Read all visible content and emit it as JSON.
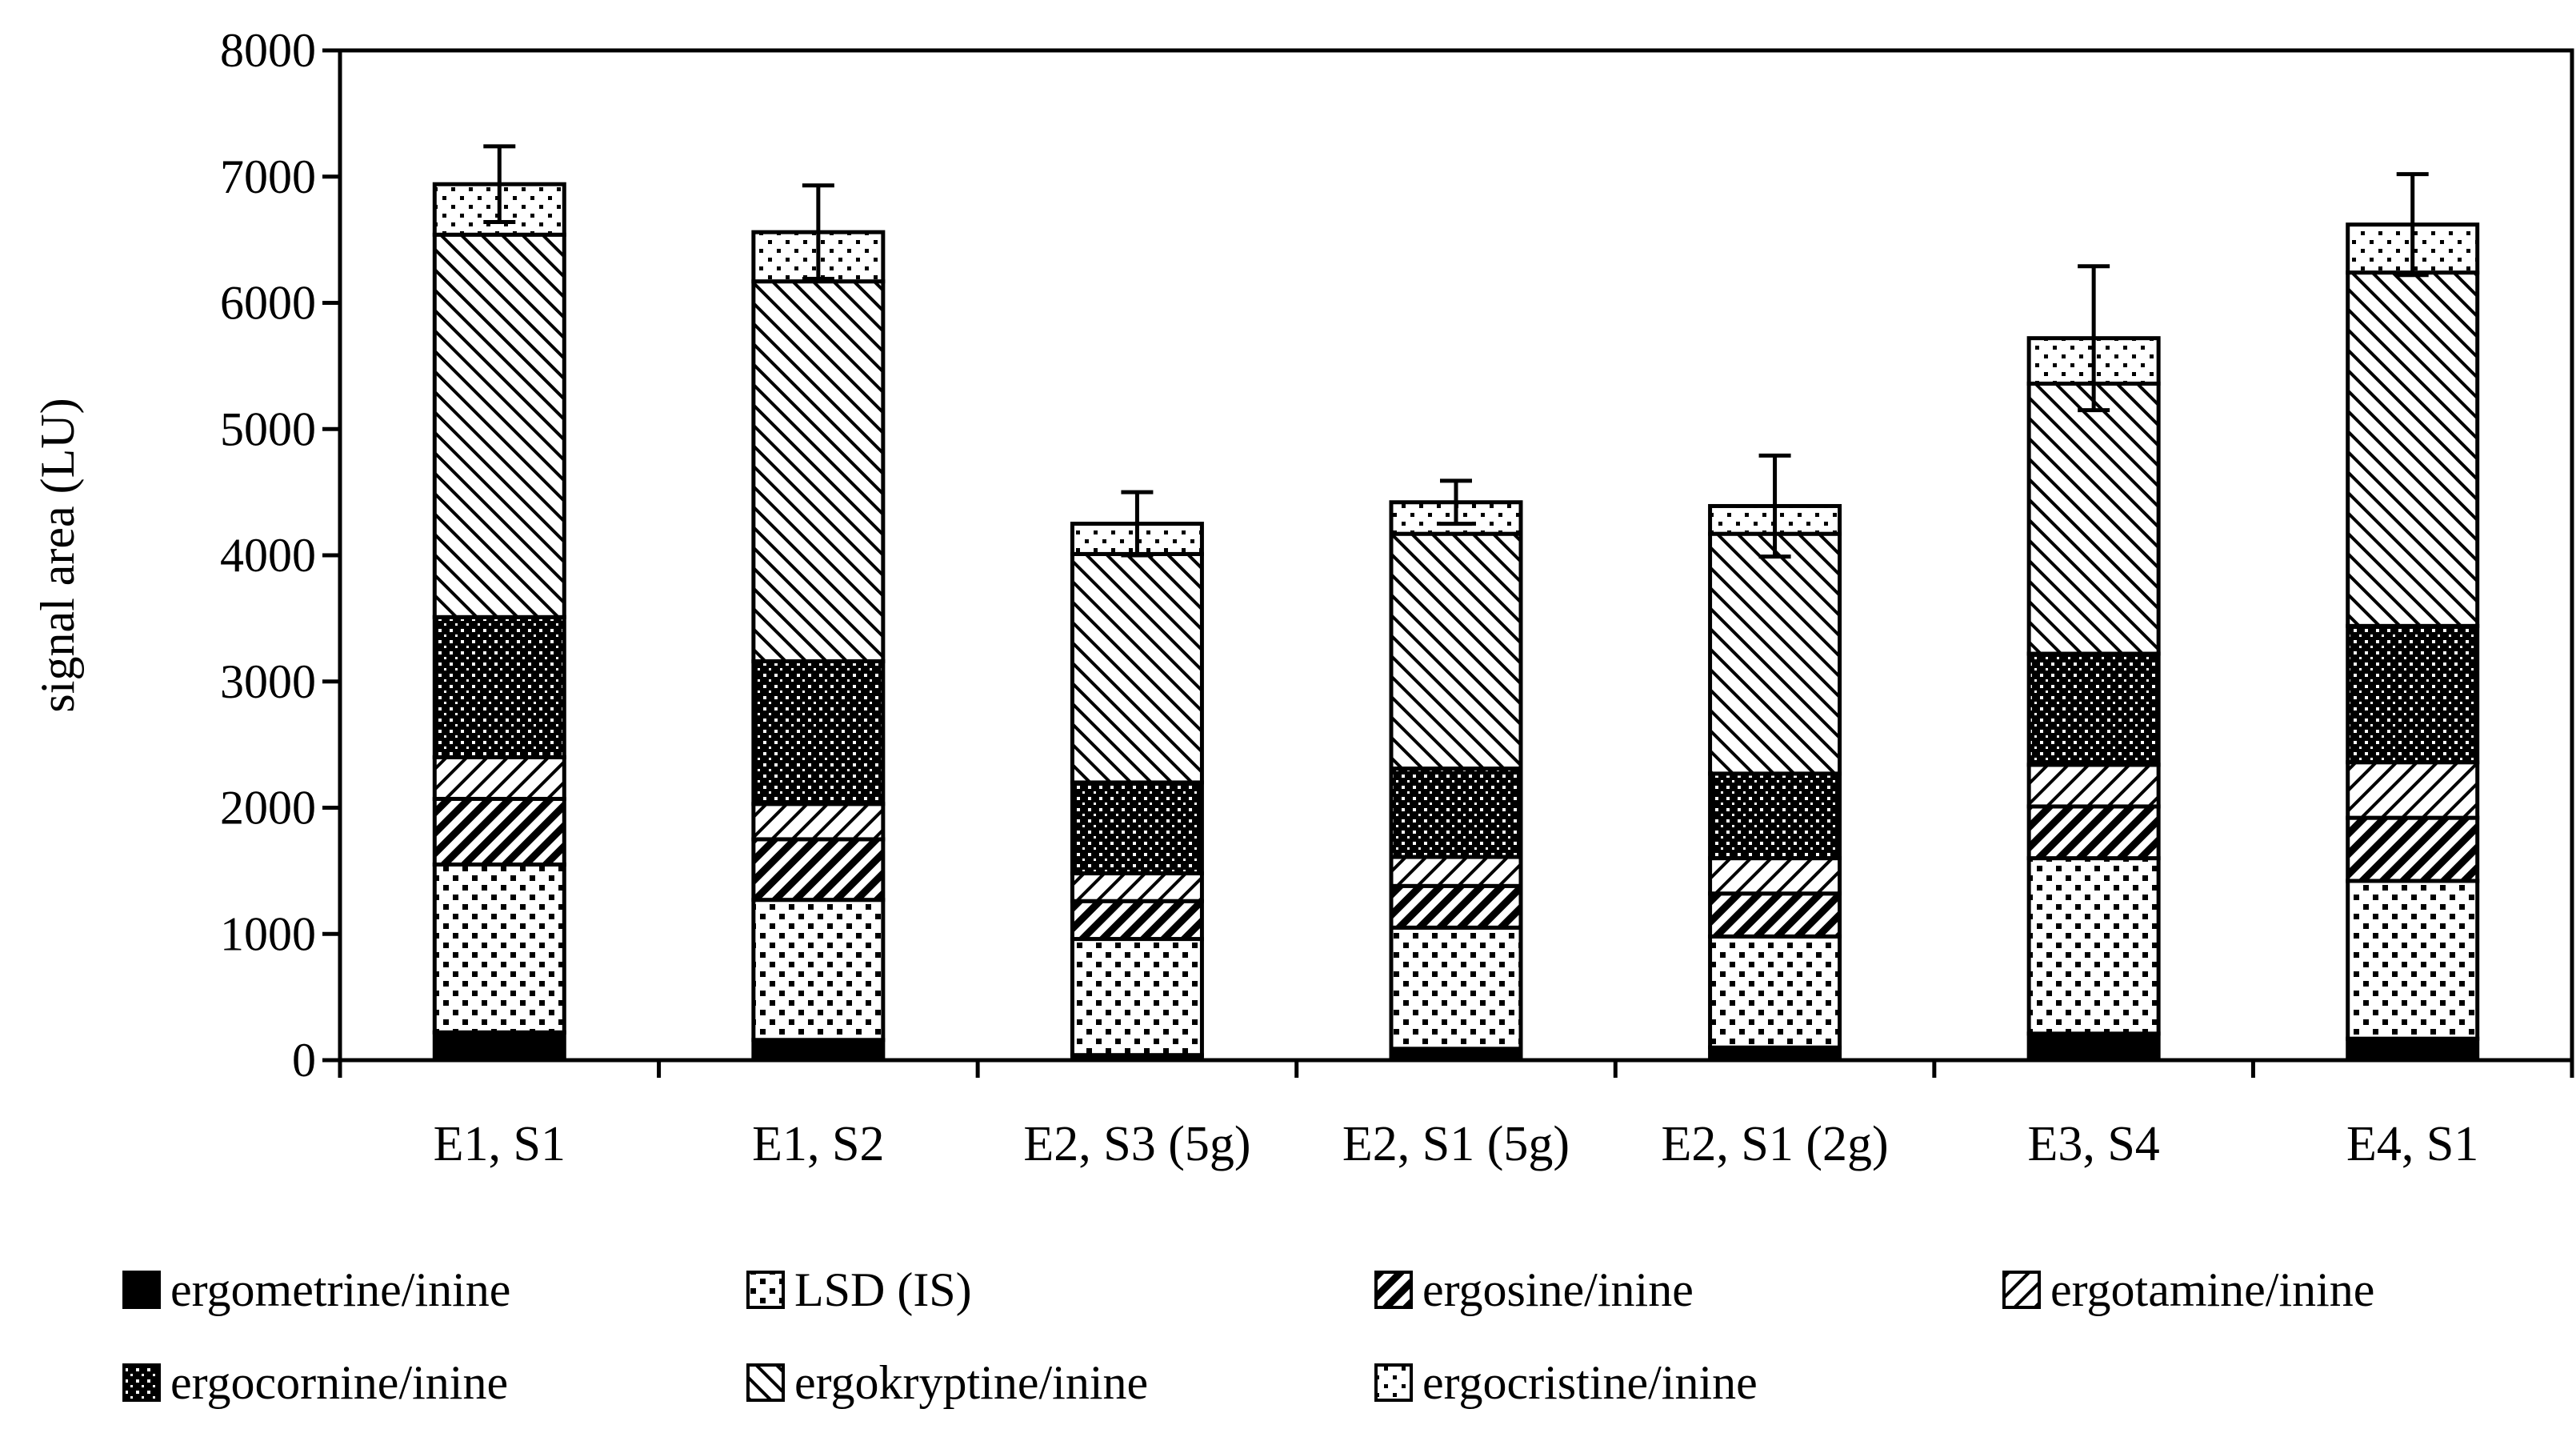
{
  "chart_data": {
    "type": "bar",
    "stacked": true,
    "title": "",
    "xlabel": "",
    "ylabel": "signal area (LU)",
    "ylim": [
      0,
      8000
    ],
    "yticks": [
      0,
      1000,
      2000,
      3000,
      4000,
      5000,
      6000,
      7000,
      8000
    ],
    "categories": [
      "E1, S1",
      "E1, S2",
      "E2, S3 (5g)",
      "E2, S1 (5g)",
      "E2, S1 (2g)",
      "E3, S4",
      "E4, S1"
    ],
    "series": [
      {
        "name": "ergometrine/inine",
        "pattern": "solid",
        "values": [
          220,
          160,
          40,
          90,
          100,
          210,
          170
        ]
      },
      {
        "name": "LSD (IS)",
        "pattern": "checker",
        "values": [
          1330,
          1110,
          920,
          960,
          880,
          1390,
          1250
        ]
      },
      {
        "name": "ergosine/inine",
        "pattern": "hatch-dense",
        "values": [
          520,
          480,
          300,
          330,
          340,
          410,
          500
        ]
      },
      {
        "name": "ergotamine/inine",
        "pattern": "hatch-light",
        "values": [
          330,
          280,
          220,
          230,
          280,
          330,
          440
        ]
      },
      {
        "name": "ergocornine/inine",
        "pattern": "dots-dark",
        "values": [
          1110,
          1130,
          720,
          700,
          670,
          880,
          1080
        ]
      },
      {
        "name": "ergokryptine/inine",
        "pattern": "hatch-back",
        "values": [
          3030,
          3010,
          1810,
          1860,
          1900,
          2140,
          2800
        ]
      },
      {
        "name": "ergocristine/inine",
        "pattern": "dots-sparse",
        "values": [
          400,
          390,
          240,
          250,
          220,
          360,
          380
        ]
      }
    ],
    "error": [
      300,
      370,
      250,
      170,
      400,
      570,
      400
    ],
    "legend_position": "bottom",
    "grid": false
  }
}
